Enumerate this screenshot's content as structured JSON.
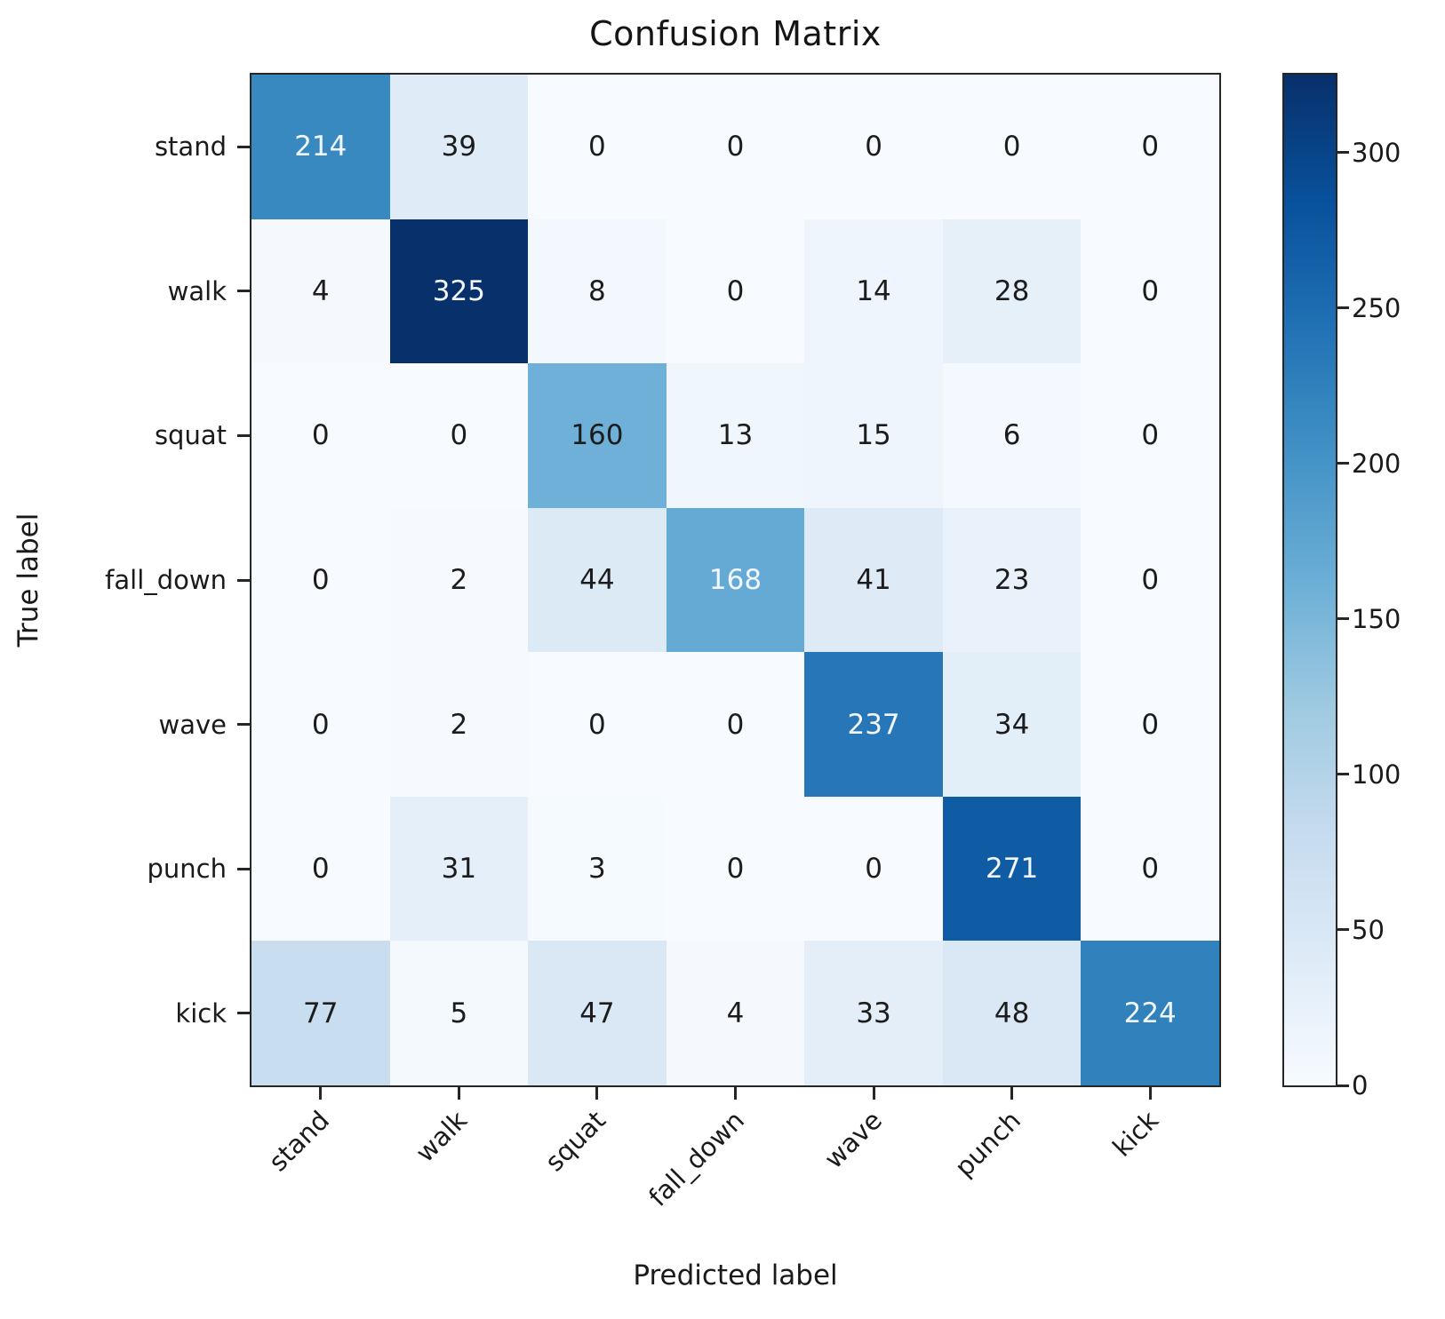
{
  "chart_data": {
    "type": "heatmap",
    "title": "Confusion Matrix",
    "xlabel": "Predicted label",
    "ylabel": "True label",
    "categories": [
      "stand",
      "walk",
      "squat",
      "fall_down",
      "wave",
      "punch",
      "kick"
    ],
    "matrix": [
      [
        214,
        39,
        0,
        0,
        0,
        0,
        0
      ],
      [
        4,
        325,
        8,
        0,
        14,
        28,
        0
      ],
      [
        0,
        0,
        160,
        13,
        15,
        6,
        0
      ],
      [
        0,
        2,
        44,
        168,
        41,
        23,
        0
      ],
      [
        0,
        2,
        0,
        0,
        237,
        34,
        0
      ],
      [
        0,
        31,
        3,
        0,
        0,
        271,
        0
      ],
      [
        77,
        5,
        47,
        4,
        33,
        48,
        224
      ]
    ],
    "vmin": 0,
    "vmax": 325,
    "colormap": "Blues",
    "colorbar_ticks": [
      0,
      50,
      100,
      150,
      200,
      250,
      300
    ],
    "text_threshold": 162.5,
    "legend_position": "right-colorbar",
    "grid": false,
    "colors": {
      "blues_anchors": [
        "#f7fbff",
        "#deebf7",
        "#c6dbef",
        "#9ecae1",
        "#6baed6",
        "#4292c6",
        "#2171b5",
        "#08519c",
        "#08306b"
      ],
      "text_light": "#f2f7fd",
      "text_dark": "#1c1c1c",
      "spine": "#262626"
    }
  }
}
